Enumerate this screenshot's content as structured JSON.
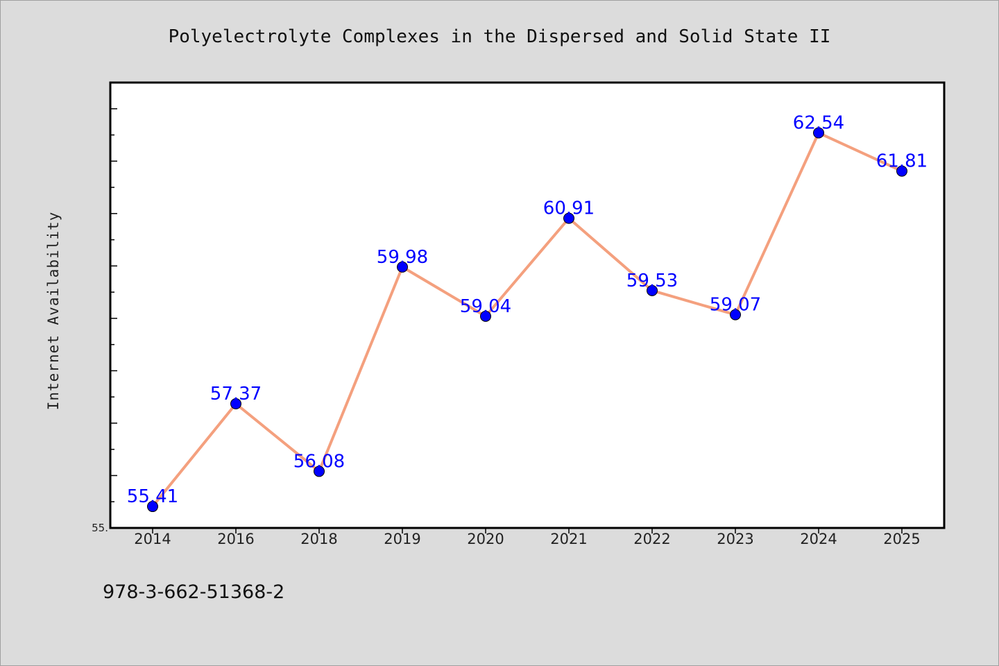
{
  "chart_data": {
    "type": "line",
    "title": "Polyelectrolyte Complexes in the Dispersed and Solid State II",
    "xlabel": "",
    "ylabel": "Internet Availability",
    "categories": [
      "2014",
      "2016",
      "2018",
      "2019",
      "2020",
      "2021",
      "2022",
      "2023",
      "2024",
      "2025"
    ],
    "series": [
      {
        "values": [
          55.41,
          57.37,
          56.08,
          59.98,
          59.04,
          60.91,
          59.53,
          59.07,
          62.54,
          61.81
        ]
      }
    ],
    "data_labels": [
      "55.41",
      "57.37",
      "56.08",
      "59.98",
      "59.04",
      "60.91",
      "59.53",
      "59.07",
      "62.54",
      "61.81"
    ],
    "ylim": [
      55.0,
      63.5
    ],
    "y_tick_label": "55.",
    "grid": false,
    "legend": "none",
    "colors": {
      "line": "#f4a07e",
      "marker": "#0000ff",
      "label": "#0000ff",
      "background": "#dcdcdc",
      "plot_background": "#ffffff"
    }
  },
  "footer": {
    "isbn": "978-3-662-51368-2"
  }
}
